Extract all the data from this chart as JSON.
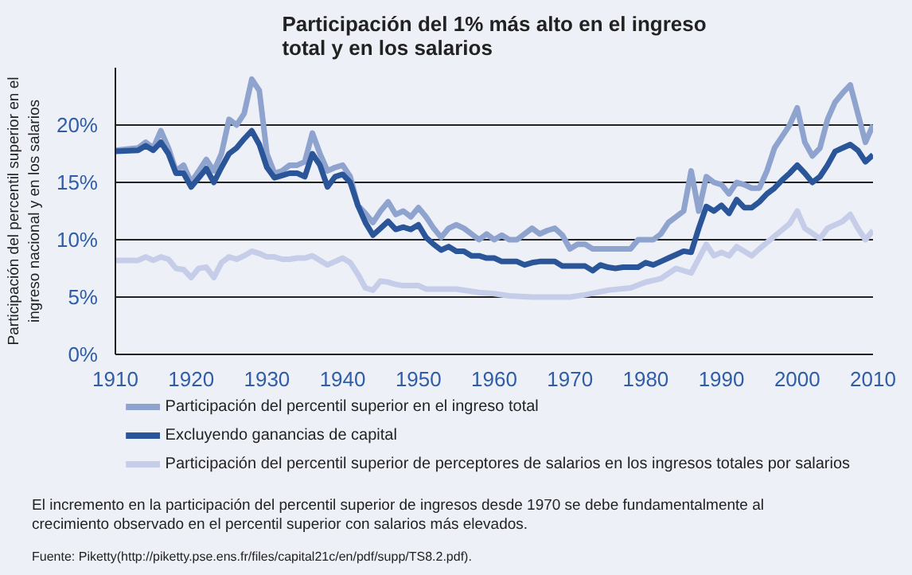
{
  "chart_data": {
    "type": "line",
    "title": "Participación del 1% más alto en el ingreso total y en los salarios",
    "ylabel": "Participación del percentil superior en el ingreso nacional y en los salarios",
    "xlim": [
      1910,
      2010
    ],
    "xticks": [
      1910,
      1920,
      1930,
      1940,
      1950,
      1960,
      1970,
      1980,
      1990,
      2000,
      2010
    ],
    "ylim": [
      0,
      25
    ],
    "yticks": [
      {
        "value": 0,
        "label": "0%"
      },
      {
        "value": 5,
        "label": "5%"
      },
      {
        "value": 10,
        "label": "10%"
      },
      {
        "value": 15,
        "label": "15%"
      },
      {
        "value": 20,
        "label": "20%"
      }
    ],
    "grid": "y",
    "legend": "bottom",
    "line_style": "solid",
    "series": [
      {
        "name": "Participación del percentil superior en el ingreso total",
        "color": "#8fa3cf",
        "x": [
          1910,
          1913,
          1914,
          1915,
          1916,
          1917,
          1918,
          1919,
          1920,
          1921,
          1922,
          1923,
          1924,
          1925,
          1926,
          1927,
          1928,
          1929,
          1930,
          1931,
          1932,
          1933,
          1934,
          1935,
          1936,
          1937,
          1938,
          1939,
          1940,
          1941,
          1942,
          1943,
          1944,
          1945,
          1946,
          1947,
          1948,
          1949,
          1950,
          1951,
          1952,
          1953,
          1954,
          1955,
          1956,
          1957,
          1958,
          1959,
          1960,
          1961,
          1962,
          1963,
          1964,
          1965,
          1966,
          1967,
          1968,
          1969,
          1970,
          1971,
          1972,
          1973,
          1974,
          1975,
          1976,
          1977,
          1978,
          1979,
          1980,
          1981,
          1982,
          1983,
          1984,
          1985,
          1986,
          1987,
          1988,
          1989,
          1990,
          1991,
          1992,
          1993,
          1994,
          1995,
          1996,
          1997,
          1998,
          1999,
          2000,
          2001,
          2002,
          2003,
          2004,
          2005,
          2006,
          2007,
          2008,
          2009,
          2010
        ],
        "values": [
          17.8,
          18,
          18.5,
          18,
          19.5,
          18,
          16,
          16.5,
          15,
          16,
          17,
          16,
          17.5,
          20.5,
          20,
          21,
          24,
          23,
          17.5,
          15.8,
          16,
          16.5,
          16.5,
          16.8,
          19.3,
          17.5,
          16,
          16.3,
          16.5,
          15.5,
          13,
          12.3,
          11.5,
          12.5,
          13.3,
          12.2,
          12.5,
          12,
          12.8,
          12,
          11,
          10.2,
          11,
          11.3,
          11,
          10.5,
          10,
          10.5,
          10,
          10.4,
          10,
          10,
          10.5,
          11,
          10.5,
          10.8,
          11,
          10.4,
          9.2,
          9.6,
          9.6,
          9.2,
          9.2,
          9.2,
          9.2,
          9.2,
          9.2,
          10,
          10,
          10,
          10.5,
          11.5,
          12,
          12.5,
          16,
          12.5,
          15.5,
          15,
          14.8,
          14,
          15,
          14.8,
          14.5,
          14.5,
          16,
          18,
          19,
          20,
          21.5,
          18.5,
          17.3,
          18,
          20.5,
          22,
          22.8,
          23.5,
          21,
          18.5,
          20
        ]
      },
      {
        "name": "Excluyendo ganancias de capital",
        "color": "#2a5599",
        "x": [
          1910,
          1913,
          1914,
          1915,
          1916,
          1917,
          1918,
          1919,
          1920,
          1921,
          1922,
          1923,
          1924,
          1925,
          1926,
          1927,
          1928,
          1929,
          1930,
          1931,
          1932,
          1933,
          1934,
          1935,
          1936,
          1937,
          1938,
          1939,
          1940,
          1941,
          1942,
          1943,
          1944,
          1945,
          1946,
          1947,
          1948,
          1949,
          1950,
          1951,
          1952,
          1953,
          1954,
          1955,
          1956,
          1957,
          1958,
          1959,
          1960,
          1961,
          1962,
          1963,
          1964,
          1965,
          1966,
          1967,
          1968,
          1969,
          1970,
          1971,
          1972,
          1973,
          1974,
          1975,
          1976,
          1977,
          1978,
          1979,
          1980,
          1981,
          1982,
          1983,
          1984,
          1985,
          1986,
          1987,
          1988,
          1989,
          1990,
          1991,
          1992,
          1993,
          1994,
          1995,
          1996,
          1997,
          1998,
          1999,
          2000,
          2001,
          2002,
          2003,
          2004,
          2005,
          2006,
          2007,
          2008,
          2009,
          2010
        ],
        "values": [
          17.7,
          17.8,
          18.2,
          17.8,
          18.5,
          17.5,
          15.8,
          15.8,
          14.6,
          15.4,
          16.2,
          15,
          16.3,
          17.5,
          18,
          18.8,
          19.5,
          18.3,
          16.3,
          15.4,
          15.6,
          15.8,
          15.8,
          15.5,
          17.5,
          16.5,
          14.6,
          15.5,
          15.7,
          15,
          13,
          11.5,
          10.4,
          11,
          11.6,
          10.9,
          11.1,
          10.9,
          11.3,
          10.2,
          9.6,
          9.1,
          9.4,
          9,
          9,
          8.6,
          8.6,
          8.4,
          8.4,
          8.1,
          8.1,
          8.1,
          7.8,
          8,
          8.1,
          8.1,
          8.1,
          7.7,
          7.7,
          7.7,
          7.7,
          7.3,
          7.8,
          7.6,
          7.5,
          7.6,
          7.6,
          7.6,
          8,
          7.8,
          8.1,
          8.4,
          8.7,
          9,
          8.9,
          11,
          12.9,
          12.5,
          13,
          12.3,
          13.5,
          12.8,
          12.8,
          13.3,
          14,
          14.5,
          15.2,
          15.8,
          16.5,
          15.8,
          15,
          15.5,
          16.5,
          17.7,
          18,
          18.3,
          17.8,
          16.8,
          17.4
        ]
      },
      {
        "name": "Participación del percentil superior de perceptores de salarios en los ingresos totales por salarios",
        "color": "#c5cde8",
        "x": [
          1910,
          1913,
          1914,
          1915,
          1916,
          1917,
          1918,
          1919,
          1920,
          1921,
          1922,
          1923,
          1924,
          1925,
          1926,
          1927,
          1928,
          1929,
          1930,
          1931,
          1932,
          1933,
          1934,
          1935,
          1936,
          1937,
          1938,
          1939,
          1940,
          1941,
          1942,
          1943,
          1944,
          1945,
          1946,
          1947,
          1948,
          1949,
          1950,
          1951,
          1952,
          1955,
          1958,
          1960,
          1962,
          1965,
          1970,
          1972,
          1975,
          1978,
          1980,
          1982,
          1984,
          1986,
          1988,
          1989,
          1990,
          1991,
          1992,
          1993,
          1994,
          1995,
          1997,
          1999,
          2000,
          2001,
          2003,
          2004,
          2006,
          2007,
          2008,
          2009,
          2010
        ],
        "values": [
          8.2,
          8.2,
          8.5,
          8.2,
          8.5,
          8.3,
          7.5,
          7.4,
          6.7,
          7.5,
          7.6,
          6.7,
          8,
          8.5,
          8.3,
          8.6,
          9,
          8.8,
          8.5,
          8.5,
          8.3,
          8.3,
          8.4,
          8.4,
          8.6,
          8.2,
          7.8,
          8.1,
          8.4,
          8,
          7,
          5.8,
          5.6,
          6.4,
          6.3,
          6.1,
          6,
          6,
          6,
          5.7,
          5.7,
          5.7,
          5.4,
          5.3,
          5.1,
          5,
          5,
          5.2,
          5.6,
          5.8,
          6.3,
          6.6,
          7.5,
          7.1,
          9.6,
          8.6,
          8.9,
          8.6,
          9.4,
          9,
          8.6,
          9.2,
          10.3,
          11.4,
          12.5,
          11,
          10.1,
          11,
          11.6,
          12.2,
          11,
          10,
          10.8
        ]
      }
    ],
    "annotations": [
      "El incremento en la participación del percentil superior de ingresos desde 1970 se debe fundamentalmente al crecimiento observado en el percentil superior con salarios más elevados.",
      "Fuente: Piketty(http://piketty.pse.ens.fr/files/capital21c/en/pdf/supp/TS8.2.pdf)."
    ]
  }
}
